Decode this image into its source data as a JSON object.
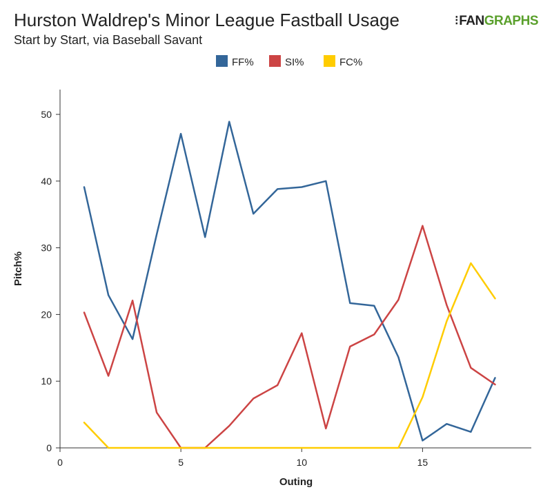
{
  "header": {
    "title": "Hurston Waldrep's Minor League Fastball Usage",
    "subtitle": "Start by Start, via Baseball Savant",
    "brand_fan": "FAN",
    "brand_graphs": "GRAPHS"
  },
  "chart_data": {
    "type": "line",
    "title": "Hurston Waldrep's Minor League Fastball Usage",
    "subtitle": "Start by Start, via Baseball Savant",
    "xlabel": "Outing",
    "ylabel": "Pitch%",
    "xlim": [
      0,
      19.5
    ],
    "ylim": [
      0,
      50
    ],
    "x_ticks": [
      0,
      5,
      10,
      15
    ],
    "y_ticks": [
      0,
      10,
      20,
      30,
      40,
      50
    ],
    "grid": false,
    "legend_position": "top-center",
    "x": [
      1,
      2,
      3,
      4,
      5,
      6,
      7,
      8,
      9,
      10,
      11,
      12,
      13,
      14,
      15,
      16,
      17,
      18
    ],
    "series": [
      {
        "name": "FF%",
        "color": "#336699",
        "values": [
          39.1,
          22.9,
          16.3,
          32.0,
          47.1,
          31.6,
          48.9,
          35.1,
          38.8,
          39.1,
          40.0,
          21.7,
          21.3,
          13.6,
          1.1,
          3.6,
          2.4,
          10.5
        ]
      },
      {
        "name": "SI%",
        "color": "#cc4444",
        "values": [
          20.3,
          10.8,
          22.1,
          5.3,
          0.0,
          0.0,
          3.3,
          7.4,
          9.4,
          17.2,
          2.9,
          15.2,
          17.0,
          22.2,
          33.3,
          21.4,
          12.0,
          9.5
        ]
      },
      {
        "name": "FC%",
        "color": "#ffcc00",
        "values": [
          3.8,
          0.0,
          0.0,
          0.0,
          0.0,
          0.0,
          0.0,
          0.0,
          0.0,
          0.0,
          0.0,
          0.0,
          0.0,
          0.0,
          7.6,
          19.0,
          27.7,
          22.4
        ]
      }
    ]
  }
}
